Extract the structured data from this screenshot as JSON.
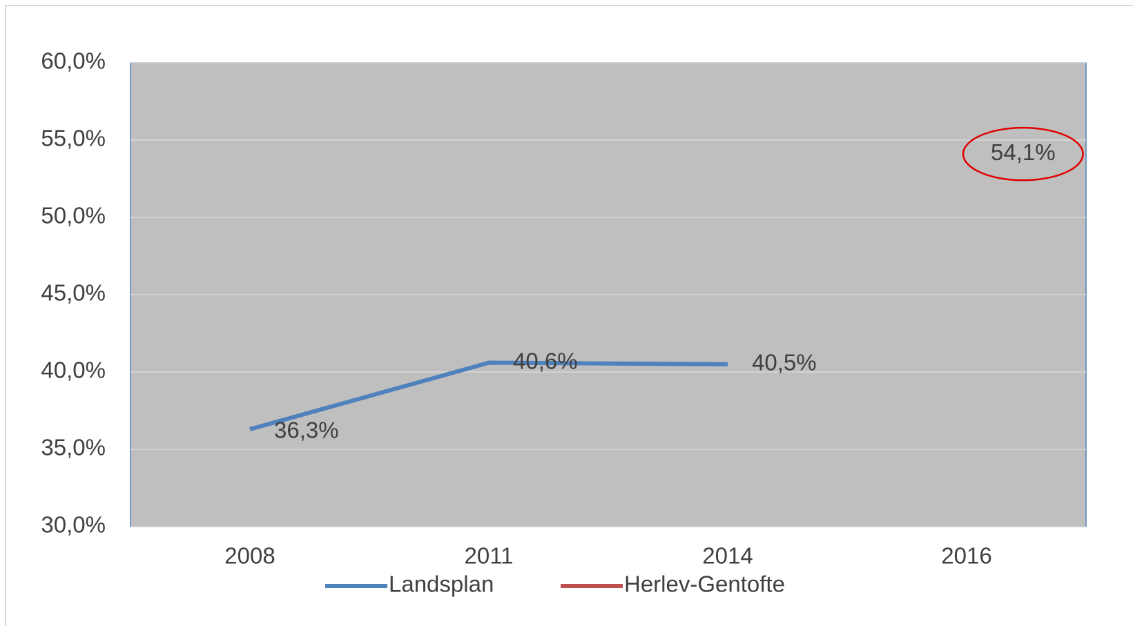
{
  "chart_data": {
    "type": "line",
    "categories": [
      "2008",
      "2011",
      "2014",
      "2016"
    ],
    "series": [
      {
        "name": "Landsplan",
        "color": "#4f81bd",
        "values": [
          36.3,
          40.6,
          40.5,
          null
        ],
        "value_labels": [
          "36,3%",
          "40,6%",
          "40,5%",
          null
        ]
      },
      {
        "name": "Herlev-Gentofte",
        "color": "#c0504d",
        "values": [
          null,
          null,
          null,
          54.1
        ],
        "value_labels": [
          null,
          null,
          null,
          "54,1%"
        ]
      }
    ],
    "ylim": [
      30,
      60
    ],
    "yticks": [
      {
        "value": 30,
        "label": "30,0%"
      },
      {
        "value": 35,
        "label": "35,0%"
      },
      {
        "value": 40,
        "label": "40,0%"
      },
      {
        "value": 45,
        "label": "45,0%"
      },
      {
        "value": 50,
        "label": "50,0%"
      },
      {
        "value": 55,
        "label": "55,0%"
      },
      {
        "value": 60,
        "label": "60,0%"
      }
    ],
    "grid": true,
    "legend": "bottom"
  }
}
